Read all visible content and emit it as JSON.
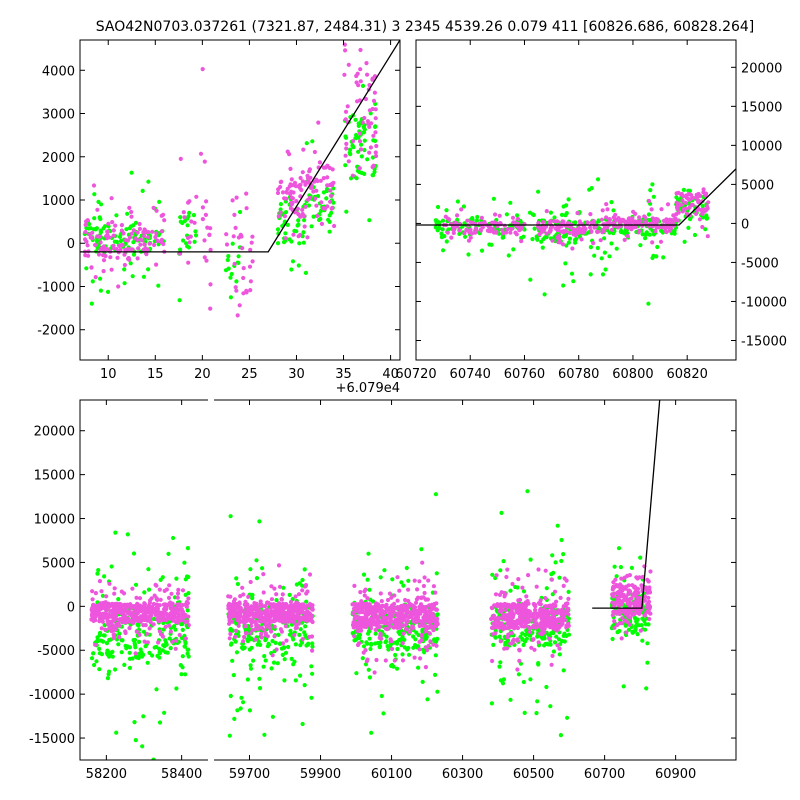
{
  "title": "SAO42N0703.037261 (7321.87, 2484.31)    3 2345 4539.26 0.079 411 [60826.686, 60828.264]",
  "colors": {
    "series_a": "#00ff00",
    "series_b": "#ee55dd",
    "model": "#000000"
  },
  "chart_data": [
    {
      "id": "top-left",
      "type": "scatter",
      "x_offset_label": "+6.079e4",
      "xlim": [
        7,
        41
      ],
      "ylim": [
        -2700,
        4700
      ],
      "xticks": [
        10,
        15,
        20,
        25,
        30,
        35,
        40
      ],
      "yticks": [
        -2000,
        -1000,
        0,
        1000,
        2000,
        3000,
        4000
      ],
      "y_axis_side": "left",
      "model_line": [
        [
          7,
          -200
        ],
        [
          27,
          -200
        ],
        [
          41,
          4700
        ]
      ],
      "series": [
        {
          "color_key": "series_a",
          "clusters": [
            {
              "x": [
                7.5,
                9.5
              ],
              "y": [
                -200,
                600
              ],
              "ys": 700,
              "n": 40
            },
            {
              "x": [
                9.5,
                13
              ],
              "y": [
                -300,
                400
              ],
              "ys": 600,
              "n": 50
            },
            {
              "x": [
                13,
                16
              ],
              "y": [
                -200,
                300
              ],
              "ys": 700,
              "n": 35
            },
            {
              "x": [
                17.5,
                19.5
              ],
              "y": [
                -100,
                800
              ],
              "ys": 900,
              "n": 20
            },
            {
              "x": [
                22.5,
                24
              ],
              "y": [
                -900,
                0
              ],
              "ys": 900,
              "n": 15
            },
            {
              "x": [
                28,
                31
              ],
              "y": [
                0,
                1000
              ],
              "ys": 700,
              "n": 45
            },
            {
              "x": [
                31,
                34
              ],
              "y": [
                500,
                1300
              ],
              "ys": 600,
              "n": 40
            },
            {
              "x": [
                35,
                38.5
              ],
              "y": [
                1500,
                3000
              ],
              "ys": 800,
              "n": 60
            }
          ]
        },
        {
          "color_key": "series_b",
          "clusters": [
            {
              "x": [
                7.5,
                10
              ],
              "y": [
                -300,
                300
              ],
              "ys": 500,
              "n": 40
            },
            {
              "x": [
                10,
                13
              ],
              "y": [
                -400,
                300
              ],
              "ys": 500,
              "n": 45
            },
            {
              "x": [
                13,
                16
              ],
              "y": [
                -200,
                400
              ],
              "ys": 600,
              "n": 40
            },
            {
              "x": [
                17.5,
                21
              ],
              "y": [
                0,
                1000
              ],
              "ys": 1200,
              "n": 30
            },
            {
              "x": [
                22.5,
                25.5
              ],
              "y": [
                -1200,
                1200
              ],
              "ys": 1500,
              "n": 30
            },
            {
              "x": [
                28,
                31
              ],
              "y": [
                600,
                1500
              ],
              "ys": 600,
              "n": 60
            },
            {
              "x": [
                31,
                34
              ],
              "y": [
                800,
                1800
              ],
              "ys": 600,
              "n": 50
            },
            {
              "x": [
                35,
                38.5
              ],
              "y": [
                2000,
                4200
              ],
              "ys": 800,
              "n": 60
            }
          ]
        }
      ]
    },
    {
      "id": "top-right",
      "type": "scatter",
      "xlim": [
        60720,
        60838
      ],
      "ylim": [
        -17500,
        23500
      ],
      "xticks": [
        60720,
        60740,
        60760,
        60780,
        60800,
        60820
      ],
      "yticks": [
        -15000,
        -10000,
        -5000,
        0,
        5000,
        10000,
        15000,
        20000
      ],
      "y_axis_side": "right",
      "model_line": [
        [
          60720,
          -200
        ],
        [
          60817,
          -200
        ],
        [
          60838,
          7000
        ]
      ],
      "series": [
        {
          "color_key": "series_a",
          "clusters": [
            {
              "x": [
                60727,
                60745
              ],
              "y": [
                -1500,
                500
              ],
              "ys": 2500,
              "n": 60
            },
            {
              "x": [
                60747,
                60760
              ],
              "y": [
                -1000,
                500
              ],
              "ys": 2500,
              "n": 50
            },
            {
              "x": [
                60762,
                60790
              ],
              "y": [
                -2500,
                500
              ],
              "ys": 3500,
              "n": 110
            },
            {
              "x": [
                60790,
                60816
              ],
              "y": [
                -1500,
                500
              ],
              "ys": 3000,
              "n": 100
            },
            {
              "x": [
                60816,
                60828
              ],
              "y": [
                500,
                3500
              ],
              "ys": 2000,
              "n": 50
            }
          ]
        },
        {
          "color_key": "series_b",
          "clusters": [
            {
              "x": [
                60730,
                60760
              ],
              "y": [
                -1200,
                200
              ],
              "ys": 900,
              "n": 90
            },
            {
              "x": [
                60765,
                60790
              ],
              "y": [
                -1200,
                300
              ],
              "ys": 1000,
              "n": 110
            },
            {
              "x": [
                60790,
                60816
              ],
              "y": [
                -600,
                800
              ],
              "ys": 1200,
              "n": 130
            },
            {
              "x": [
                60816,
                60828
              ],
              "y": [
                1000,
                4000
              ],
              "ys": 1200,
              "n": 70
            }
          ]
        }
      ]
    },
    {
      "id": "bottom",
      "type": "scatter",
      "broken_x_axis": true,
      "segments": [
        {
          "xlim": [
            58130,
            58470
          ],
          "xticks": [
            58200,
            58400
          ]
        },
        {
          "xlim": [
            59600,
            61070
          ],
          "xticks": [
            59700,
            59900,
            60100,
            60300,
            60500,
            60700,
            60900
          ]
        }
      ],
      "ylim": [
        -17500,
        23500
      ],
      "yticks": [
        -15000,
        -10000,
        -5000,
        0,
        5000,
        10000,
        15000,
        20000
      ],
      "y_axis_side": "left",
      "model_line": [
        [
          60665,
          -200
        ],
        [
          60805,
          -200
        ],
        [
          60855,
          23500
        ]
      ],
      "series": [
        {
          "color_key": "series_a",
          "clusters": [
            {
              "x": [
                58160,
                58420
              ],
              "y": [
                -6000,
                0
              ],
              "ys": 5000,
              "n": 260
            },
            {
              "x": [
                59640,
                59880
              ],
              "y": [
                -5000,
                0
              ],
              "ys": 5000,
              "n": 240
            },
            {
              "x": [
                59990,
                60230
              ],
              "y": [
                -5000,
                0
              ],
              "ys": 5000,
              "n": 240
            },
            {
              "x": [
                60380,
                60600
              ],
              "y": [
                -4500,
                0
              ],
              "ys": 5000,
              "n": 220
            },
            {
              "x": [
                60720,
                60830
              ],
              "y": [
                -3000,
                1500
              ],
              "ys": 3500,
              "n": 120
            }
          ]
        },
        {
          "color_key": "series_b",
          "clusters": [
            {
              "x": [
                58160,
                58420
              ],
              "y": [
                -1800,
                300
              ],
              "ys": 1500,
              "n": 450
            },
            {
              "x": [
                59640,
                59880
              ],
              "y": [
                -1800,
                300
              ],
              "ys": 1800,
              "n": 450
            },
            {
              "x": [
                59990,
                60230
              ],
              "y": [
                -2500,
                300
              ],
              "ys": 2200,
              "n": 450
            },
            {
              "x": [
                60380,
                60600
              ],
              "y": [
                -2500,
                300
              ],
              "ys": 2200,
              "n": 420
            },
            {
              "x": [
                60720,
                60830
              ],
              "y": [
                -1200,
                2500
              ],
              "ys": 1500,
              "n": 200
            }
          ]
        }
      ]
    }
  ]
}
